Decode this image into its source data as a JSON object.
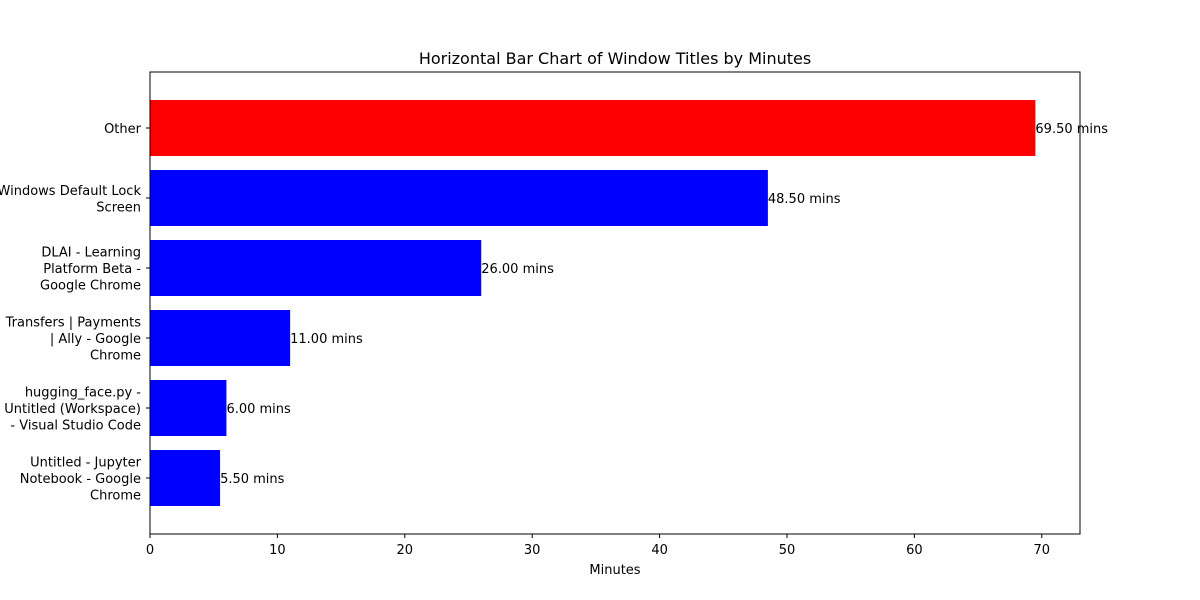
{
  "chart_data": {
    "type": "bar",
    "orientation": "horizontal",
    "title": "Horizontal Bar Chart of Window Titles by Minutes",
    "xlabel": "Minutes",
    "ylabel": "",
    "xlim": [
      0,
      73
    ],
    "xticks": [
      "0",
      "10",
      "20",
      "30",
      "40",
      "50",
      "60",
      "70"
    ],
    "grid": false,
    "categories": [
      "Other",
      "Windows Default Lock Screen",
      "DLAI - Learning Platform Beta - Google Chrome",
      "Transfers | Payments | Ally - Google Chrome",
      "hugging_face.py - Untitled (Workspace) - Visual Studio Code",
      "Untitled - Jupyter Notebook - Google Chrome"
    ],
    "category_label_lines": [
      [
        "Other"
      ],
      [
        "Windows Default Lock",
        "Screen"
      ],
      [
        "DLAI - Learning",
        "Platform Beta -",
        "Google Chrome"
      ],
      [
        "Transfers | Payments",
        "| Ally - Google",
        "Chrome"
      ],
      [
        "hugging_face.py -",
        "Untitled (Workspace)",
        "- Visual Studio Code"
      ],
      [
        "Untitled - Jupyter",
        "Notebook - Google",
        "Chrome"
      ]
    ],
    "values": [
      69.5,
      48.5,
      26.0,
      11.0,
      6.0,
      5.5
    ],
    "value_labels": [
      "69.50 mins",
      "48.50 mins",
      "26.00 mins",
      "11.00 mins",
      "6.00 mins",
      "5.50 mins"
    ],
    "colors": [
      "#ff0000",
      "#0000ff",
      "#0000ff",
      "#0000ff",
      "#0000ff",
      "#0000ff"
    ]
  }
}
